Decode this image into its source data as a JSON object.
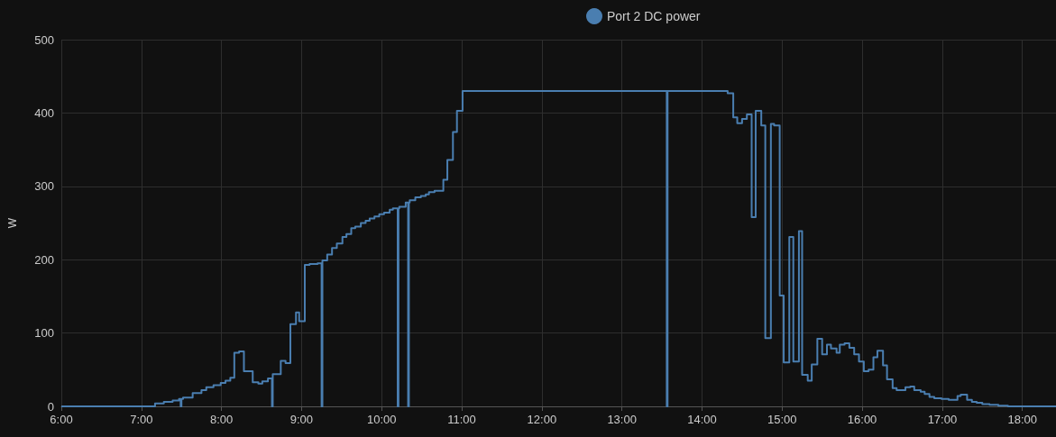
{
  "chart_data": {
    "type": "step",
    "ylabel": "W",
    "legend": "top",
    "grid": true,
    "marker": "none",
    "line_style": "solid",
    "xlim": [
      6,
      18.42
    ],
    "ylim": [
      0,
      500
    ],
    "xticks": [
      {
        "value": 6,
        "label": "6:00"
      },
      {
        "value": 7,
        "label": "7:00"
      },
      {
        "value": 8,
        "label": "8:00"
      },
      {
        "value": 9,
        "label": "9:00"
      },
      {
        "value": 10,
        "label": "10:00"
      },
      {
        "value": 11,
        "label": "11:00"
      },
      {
        "value": 12,
        "label": "12:00"
      },
      {
        "value": 13,
        "label": "13:00"
      },
      {
        "value": 14,
        "label": "14:00"
      },
      {
        "value": 15,
        "label": "15:00"
      },
      {
        "value": 16,
        "label": "16:00"
      },
      {
        "value": 17,
        "label": "17:00"
      },
      {
        "value": 18,
        "label": "18:00"
      }
    ],
    "yticks": [
      0,
      100,
      200,
      300,
      400,
      500
    ],
    "series": [
      {
        "name": "Port 2 DC power",
        "color": "#4a7eb0",
        "x": [
          6,
          7.17,
          7.28,
          7.39,
          7.47,
          7.49,
          7.5,
          7.52,
          7.64,
          7.75,
          7.81,
          7.9,
          7.99,
          8.05,
          8.11,
          8.16,
          8.22,
          8.28,
          8.39,
          8.46,
          8.51,
          8.58,
          8.63,
          8.64,
          8.74,
          8.8,
          8.86,
          8.93,
          8.97,
          9.04,
          9.1,
          9.2,
          9.25,
          9.26,
          9.32,
          9.38,
          9.44,
          9.51,
          9.56,
          9.62,
          9.67,
          9.74,
          9.8,
          9.85,
          9.91,
          9.97,
          10.03,
          10.1,
          10.14,
          10.2,
          10.21,
          10.22,
          10.3,
          10.33,
          10.34,
          10.35,
          10.42,
          10.49,
          10.55,
          10.59,
          10.66,
          10.72,
          10.77,
          10.82,
          10.89,
          10.94,
          11.01,
          13.56,
          13.57,
          14.32,
          14.39,
          14.44,
          14.5,
          14.56,
          14.62,
          14.67,
          14.74,
          14.79,
          14.86,
          14.9,
          14.97,
          15.02,
          15.09,
          15.14,
          15.21,
          15.25,
          15.32,
          15.37,
          15.44,
          15.5,
          15.56,
          15.61,
          15.68,
          15.72,
          15.78,
          15.84,
          15.9,
          15.96,
          16.02,
          16.08,
          16.14,
          16.19,
          16.26,
          16.31,
          16.38,
          16.43,
          16.54,
          16.6,
          16.65,
          16.73,
          16.78,
          16.84,
          16.9,
          16.99,
          17.08,
          17.19,
          17.23,
          17.31,
          17.37,
          17.43,
          17.5,
          17.59,
          17.7,
          17.82,
          18.42
        ],
        "values": [
          0,
          4,
          6,
          8,
          10,
          0,
          10,
          12,
          18,
          22,
          26,
          29,
          32,
          35,
          39,
          73,
          75,
          48,
          33,
          31,
          34,
          38,
          0,
          44,
          62,
          59,
          112,
          128,
          116,
          193,
          194,
          195,
          0,
          199,
          207,
          216,
          222,
          231,
          235,
          243,
          245,
          250,
          253,
          256,
          259,
          262,
          264,
          268,
          270,
          0,
          270,
          272,
          278,
          0,
          278,
          281,
          285,
          287,
          289,
          292,
          294,
          294,
          309,
          336,
          374,
          403,
          430,
          0,
          430,
          427,
          394,
          386,
          392,
          398,
          258,
          403,
          383,
          93,
          385,
          383,
          151,
          60,
          231,
          61,
          239,
          43,
          35,
          57,
          92,
          71,
          84,
          79,
          73,
          84,
          86,
          80,
          71,
          61,
          48,
          50,
          67,
          76,
          56,
          37,
          25,
          22,
          26,
          27,
          22,
          20,
          17,
          13,
          11,
          10,
          9,
          14,
          16,
          9,
          6,
          5,
          3,
          2,
          1,
          0,
          0
        ]
      }
    ]
  }
}
